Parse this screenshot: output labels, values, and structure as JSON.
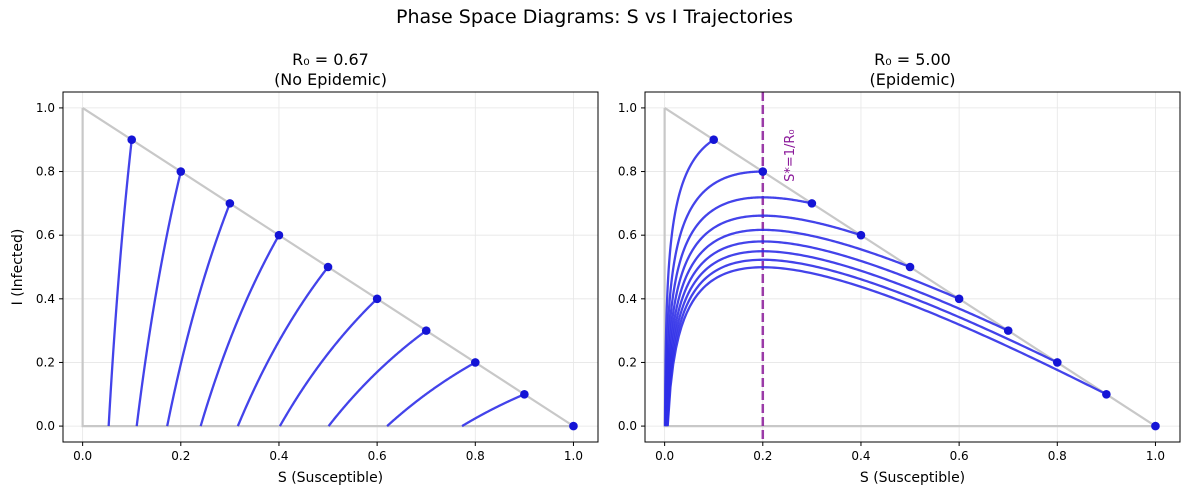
{
  "figure": {
    "title": "Phase Space Diagrams: S vs I Trajectories"
  },
  "chart_data": [
    {
      "type": "line",
      "title": "R₀ = 0.67",
      "subtitle": "(No Epidemic)",
      "xlabel": "S (Susceptible)",
      "ylabel": "I (Infected)",
      "R0": 0.67,
      "xlim": [
        -0.04,
        1.05
      ],
      "ylim": [
        -0.05,
        1.05
      ],
      "xticks": [
        "0.0",
        "0.2",
        "0.4",
        "0.6",
        "0.8",
        "1.0"
      ],
      "yticks": [
        "0.0",
        "0.2",
        "0.4",
        "0.6",
        "0.8",
        "1.0"
      ],
      "grid": true,
      "boundary": {
        "color": "#c8c8c8",
        "points": [
          [
            0,
            1
          ],
          [
            1,
            0
          ],
          [
            0,
            0
          ],
          [
            0,
            1
          ]
        ]
      },
      "series_color": "#2f2fe8",
      "marker_color": "#1414d6",
      "initial_points": [
        [
          0.1,
          0.9
        ],
        [
          0.2,
          0.8
        ],
        [
          0.3,
          0.7
        ],
        [
          0.4,
          0.6
        ],
        [
          0.5,
          0.5
        ],
        [
          0.6,
          0.4
        ],
        [
          0.7,
          0.3
        ],
        [
          0.8,
          0.2
        ],
        [
          0.9,
          0.1
        ],
        [
          1.0,
          0.0
        ]
      ],
      "final_S": [
        0.053,
        0.108,
        0.17,
        0.24,
        0.317,
        0.4,
        0.5,
        0.62,
        0.77,
        1.0
      ]
    },
    {
      "type": "line",
      "title": "R₀ = 5.00",
      "subtitle": "(Epidemic)",
      "xlabel": "S (Susceptible)",
      "ylabel": "",
      "R0": 5.0,
      "xlim": [
        -0.04,
        1.05
      ],
      "ylim": [
        -0.05,
        1.05
      ],
      "xticks": [
        "0.0",
        "0.2",
        "0.4",
        "0.6",
        "0.8",
        "1.0"
      ],
      "yticks": [
        "0.0",
        "0.2",
        "0.4",
        "0.6",
        "0.8",
        "1.0"
      ],
      "grid": true,
      "boundary": {
        "color": "#c8c8c8",
        "points": [
          [
            0,
            1
          ],
          [
            1,
            0
          ],
          [
            0,
            0
          ],
          [
            0,
            1
          ]
        ]
      },
      "series_color": "#2f2fe8",
      "marker_color": "#1414d6",
      "initial_points": [
        [
          0.1,
          0.9
        ],
        [
          0.2,
          0.8
        ],
        [
          0.3,
          0.7
        ],
        [
          0.4,
          0.6
        ],
        [
          0.5,
          0.5
        ],
        [
          0.6,
          0.4
        ],
        [
          0.7,
          0.3
        ],
        [
          0.8,
          0.2
        ],
        [
          0.9,
          0.1
        ],
        [
          1.0,
          0.0
        ]
      ],
      "threshold": {
        "S": 0.2,
        "label": "S*=1/R₀",
        "color": "#8b1a9a"
      }
    }
  ]
}
